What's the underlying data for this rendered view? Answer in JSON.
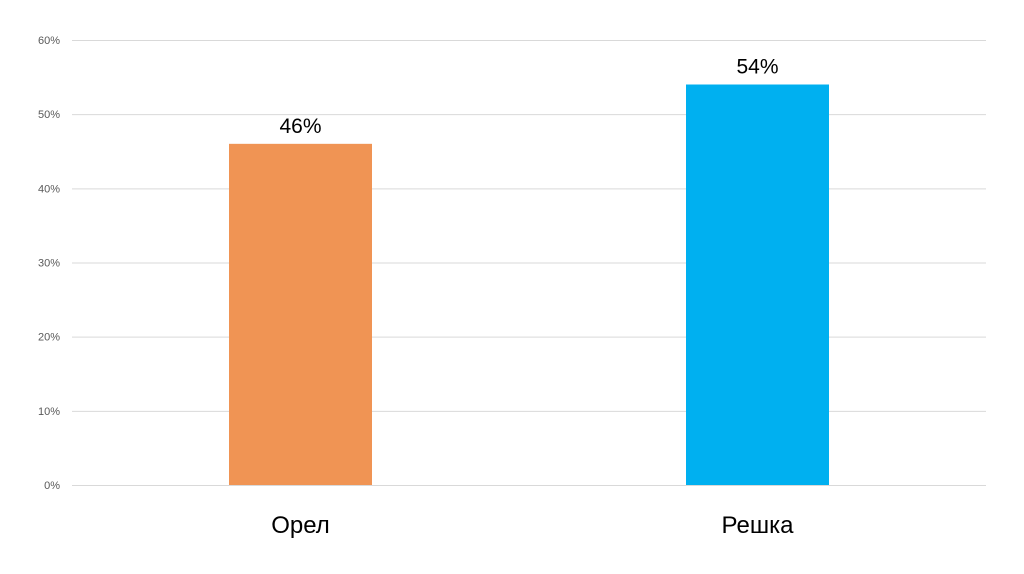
{
  "chart_data": {
    "type": "bar",
    "categories": [
      "Орел",
      "Решка"
    ],
    "values": [
      46,
      54
    ],
    "data_labels": [
      "46%",
      "54%"
    ],
    "colors": [
      "#f09454",
      "#00b0f0"
    ],
    "ylim": [
      0,
      60
    ],
    "yticks": [
      0,
      10,
      20,
      30,
      40,
      50,
      60
    ],
    "ytick_labels": [
      "0%",
      "10%",
      "20%",
      "30%",
      "40%",
      "50%",
      "60%"
    ],
    "grid": true,
    "legend": "none",
    "title": "",
    "xlabel": "",
    "ylabel": ""
  }
}
